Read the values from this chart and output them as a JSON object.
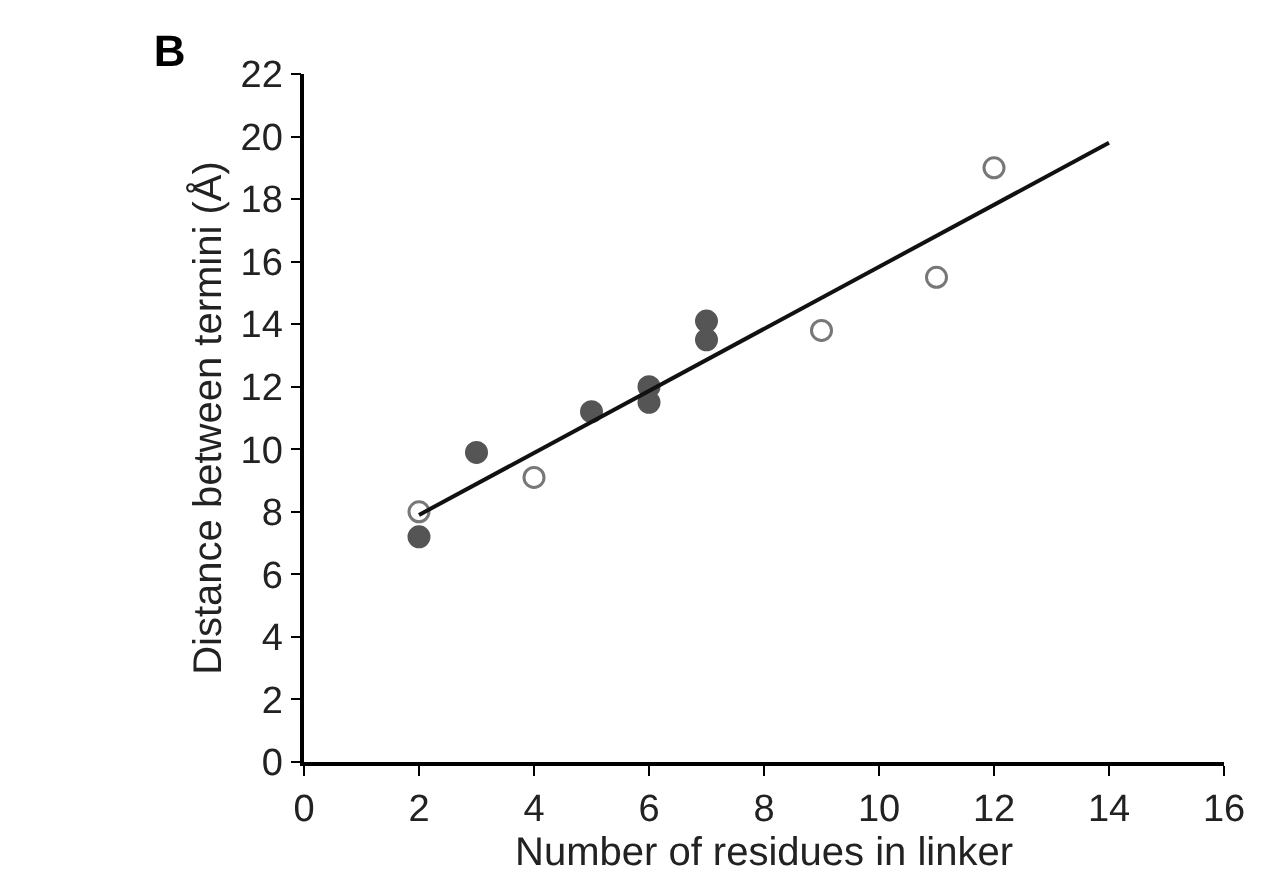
{
  "chart_data": {
    "type": "scatter",
    "title": "B",
    "xlabel": "Number of residues in linker",
    "ylabel": "Distance between termini (Å)",
    "series": [
      {
        "marker": "circle",
        "color": "#555555",
        "x": [
          2,
          3,
          5,
          6,
          6,
          7,
          7
        ],
        "values": [
          7.2,
          9.9,
          11.2,
          12.0,
          11.5,
          14.1,
          13.5
        ]
      },
      {
        "marker": "circle-open",
        "color": "#777777",
        "x": [
          2,
          4,
          9,
          11,
          12
        ],
        "values": [
          8.0,
          9.1,
          13.8,
          15.5,
          19.0
        ]
      },
      {
        "type": "line",
        "marker": "none",
        "color": "#111111",
        "x": [
          2,
          14
        ],
        "values": [
          7.9,
          19.8
        ]
      }
    ],
    "xlim": [
      0,
      16
    ],
    "xticks": [
      0,
      2,
      4,
      6,
      8,
      10,
      12,
      14,
      16
    ],
    "ylim": [
      0,
      22
    ],
    "yticks": [
      0,
      2,
      4,
      6,
      8,
      10,
      12,
      14,
      16,
      18,
      20,
      22
    ]
  }
}
